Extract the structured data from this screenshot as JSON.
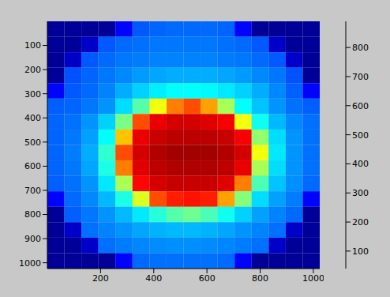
{
  "chart_data": {
    "type": "heatmap",
    "x": [
      32,
      96,
      160,
      224,
      288,
      352,
      416,
      480,
      544,
      608,
      672,
      736,
      800,
      864,
      928,
      992
    ],
    "y": [
      32,
      96,
      160,
      224,
      288,
      352,
      416,
      480,
      544,
      608,
      672,
      736,
      800,
      864,
      928,
      992
    ],
    "cells": [
      [
        60,
        60,
        60,
        60,
        150,
        220,
        230,
        235,
        235,
        235,
        230,
        150,
        60,
        60,
        60,
        60
      ],
      [
        60,
        60,
        100,
        220,
        235,
        240,
        245,
        245,
        245,
        245,
        240,
        235,
        220,
        100,
        60,
        60
      ],
      [
        60,
        100,
        220,
        235,
        245,
        250,
        255,
        255,
        255,
        255,
        250,
        245,
        235,
        220,
        100,
        60
      ],
      [
        60,
        215,
        230,
        245,
        260,
        275,
        285,
        290,
        290,
        290,
        285,
        275,
        260,
        245,
        215,
        60
      ],
      [
        150,
        220,
        235,
        255,
        290,
        320,
        345,
        360,
        360,
        355,
        340,
        320,
        290,
        260,
        225,
        150
      ],
      [
        225,
        230,
        245,
        270,
        330,
        430,
        560,
        680,
        720,
        650,
        500,
        360,
        310,
        270,
        240,
        225
      ],
      [
        230,
        240,
        270,
        320,
        460,
        720,
        800,
        820,
        820,
        810,
        790,
        560,
        370,
        300,
        260,
        240
      ],
      [
        230,
        245,
        280,
        360,
        620,
        800,
        830,
        840,
        840,
        840,
        830,
        790,
        480,
        330,
        270,
        240
      ],
      [
        230,
        250,
        290,
        400,
        720,
        820,
        850,
        860,
        860,
        860,
        850,
        820,
        560,
        340,
        270,
        240
      ],
      [
        230,
        245,
        285,
        380,
        680,
        810,
        840,
        850,
        850,
        850,
        840,
        800,
        500,
        330,
        270,
        240
      ],
      [
        225,
        240,
        270,
        340,
        500,
        780,
        820,
        830,
        830,
        830,
        810,
        680,
        420,
        310,
        265,
        235
      ],
      [
        150,
        235,
        260,
        300,
        380,
        540,
        720,
        760,
        770,
        760,
        650,
        470,
        330,
        280,
        250,
        150
      ],
      [
        60,
        225,
        245,
        270,
        300,
        340,
        390,
        430,
        450,
        420,
        370,
        320,
        280,
        255,
        235,
        60
      ],
      [
        60,
        100,
        240,
        255,
        270,
        285,
        295,
        300,
        300,
        295,
        285,
        270,
        255,
        240,
        100,
        60
      ],
      [
        60,
        60,
        100,
        240,
        250,
        258,
        262,
        265,
        265,
        262,
        258,
        250,
        240,
        100,
        60,
        60
      ],
      [
        60,
        60,
        60,
        60,
        150,
        235,
        240,
        240,
        240,
        240,
        235,
        150,
        60,
        60,
        60,
        60
      ]
    ],
    "xlim": [
      0,
      1024
    ],
    "ylim": [
      0,
      1024
    ],
    "xticks": [
      200,
      400,
      600,
      800,
      1000
    ],
    "yticks": [
      100,
      200,
      300,
      400,
      500,
      600,
      700,
      800,
      900,
      1000
    ],
    "colorbar_range": [
      40,
      890
    ],
    "colorbar_ticks": [
      100,
      200,
      300,
      400,
      500,
      600,
      700,
      800
    ]
  }
}
